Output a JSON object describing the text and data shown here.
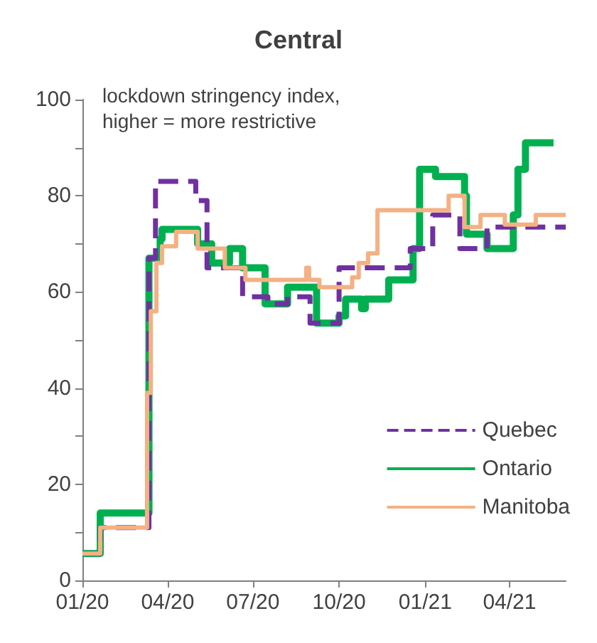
{
  "chart_data": {
    "type": "step",
    "title": "Central",
    "annotations": [
      "lockdown stringency index,\nhigher = more restrictive"
    ],
    "xlim": [
      "2020-01-01",
      "2021-05-31"
    ],
    "xticks": [
      {
        "value": "2020-01-01",
        "label": "01/20"
      },
      {
        "value": "2020-04-01",
        "label": "04/20"
      },
      {
        "value": "2020-07-01",
        "label": "07/20"
      },
      {
        "value": "2020-10-01",
        "label": "10/20"
      },
      {
        "value": "2021-01-01",
        "label": "01/21"
      },
      {
        "value": "2021-04-01",
        "label": "04/21"
      }
    ],
    "ylim": [
      0,
      100
    ],
    "yticks": [
      0,
      {
        "value": 10,
        "label": null
      },
      20,
      {
        "value": 30,
        "label": null
      },
      40,
      {
        "value": 50,
        "label": null
      },
      60,
      {
        "value": 70,
        "label": null
      },
      80,
      {
        "value": 90,
        "label": null
      },
      100
    ],
    "grid": false,
    "legend": "bottom right",
    "marker": "none",
    "series": [
      {
        "name": "Quebec",
        "color": "#7030a0",
        "line_style": "dashed",
        "x": [
          "2020-01-01",
          "2020-01-20",
          "2020-03-12",
          "2020-03-19",
          "2020-05-01",
          "2020-05-13",
          "2020-06-20",
          "2020-07-17",
          "2020-08-07",
          "2020-08-31",
          "2020-10-01",
          "2020-12-16",
          "2021-01-09",
          "2021-02-07",
          "2021-03-08",
          "2021-05-31"
        ],
        "values": [
          5.6,
          11,
          67,
          83,
          79,
          65,
          59,
          57.5,
          59,
          53.5,
          65,
          69,
          76,
          69,
          73.5,
          73.5
        ]
      },
      {
        "name": "Ontario",
        "color": "#00b050",
        "line_style": "solid",
        "x": [
          "2020-01-01",
          "2020-01-20",
          "2020-03-12",
          "2020-03-24",
          "2020-03-26",
          "2020-05-03",
          "2020-05-18",
          "2020-06-06",
          "2020-06-20",
          "2020-07-14",
          "2020-08-07",
          "2020-09-07",
          "2020-10-01",
          "2020-10-08",
          "2020-10-25",
          "2020-10-29",
          "2020-11-23",
          "2020-12-19",
          "2020-12-26",
          "2021-01-12",
          "2021-02-12",
          "2021-02-14",
          "2021-03-08",
          "2021-04-05",
          "2021-04-10",
          "2021-04-18",
          "2021-05-18"
        ],
        "values": [
          5.6,
          14,
          67,
          71,
          73,
          70,
          66,
          69,
          65,
          57.5,
          61,
          53.5,
          55,
          58.5,
          56.5,
          58.5,
          62.5,
          69,
          85.5,
          84,
          80,
          72,
          69,
          76,
          85.5,
          91,
          91
        ]
      },
      {
        "name": "Manitoba",
        "color": "#f4b183",
        "line_style": "solid",
        "x": [
          "2020-01-01",
          "2020-01-20",
          "2020-03-10",
          "2020-03-14",
          "2020-03-20",
          "2020-03-26",
          "2020-04-10",
          "2020-05-03",
          "2020-06-01",
          "2020-06-23",
          "2020-08-27",
          "2020-08-30",
          "2020-09-10",
          "2020-10-15",
          "2020-10-22",
          "2020-11-01",
          "2020-11-11",
          "2021-01-26",
          "2021-02-12",
          "2021-03-01",
          "2021-03-27",
          "2021-04-29",
          "2021-05-31"
        ],
        "values": [
          5.6,
          11,
          39,
          56,
          66,
          69.5,
          72.5,
          69,
          65,
          62.5,
          65,
          62.5,
          61,
          63,
          66,
          68,
          77,
          80,
          73.5,
          76,
          74,
          76,
          76
        ]
      }
    ]
  }
}
